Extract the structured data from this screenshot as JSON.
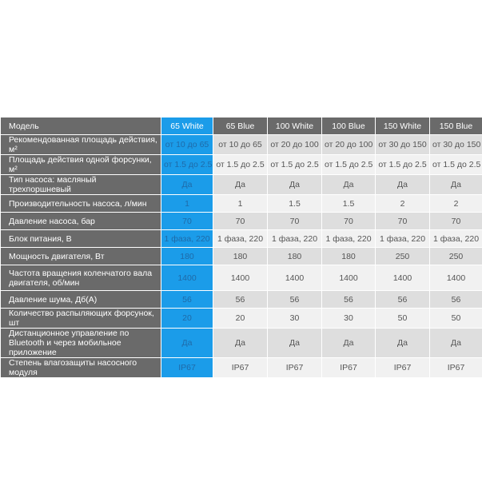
{
  "header": {
    "label": "Модель",
    "models": [
      "65 White",
      "65 Blue",
      "100 White",
      "100 Blue",
      "150 White",
      "150 Blue"
    ]
  },
  "rows": [
    {
      "label": "Рекомендованная площадь действия, м²",
      "values": [
        "от 10 до 65",
        "от 10 до 65",
        "от 20 до 100",
        "от 20 до 100",
        "от 30 до 150",
        "от 30 до 150"
      ]
    },
    {
      "label": "Площадь действия одной форсунки, м²",
      "values": [
        "от 1.5 до 2.5",
        "от 1.5 до 2.5",
        "от 1.5 до 2.5",
        "от 1.5 до 2.5",
        "от 1.5 до 2.5",
        "от 1.5 до 2.5"
      ]
    },
    {
      "label": "Тип насоса: масляный трехпоршневый",
      "values": [
        "Да",
        "Да",
        "Да",
        "Да",
        "Да",
        "Да"
      ]
    },
    {
      "label": "Производительность насоса, л/мин",
      "values": [
        "1",
        "1",
        "1.5",
        "1.5",
        "2",
        "2"
      ]
    },
    {
      "label": "Давление насоса, бар",
      "values": [
        "70",
        "70",
        "70",
        "70",
        "70",
        "70"
      ]
    },
    {
      "label": "Блок питания, В",
      "values": [
        "1 фаза, 220",
        "1 фаза, 220",
        "1 фаза, 220",
        "1 фаза, 220",
        "1 фаза, 220",
        "1 фаза, 220"
      ]
    },
    {
      "label": "Мощность двигателя, Вт",
      "values": [
        "180",
        "180",
        "180",
        "180",
        "250",
        "250"
      ]
    },
    {
      "label": "Частота вращения коленчатого вала двигателя, об/мин",
      "values": [
        "1400",
        "1400",
        "1400",
        "1400",
        "1400",
        "1400"
      ]
    },
    {
      "label": "Давление шума, Дб(А)",
      "values": [
        "56",
        "56",
        "56",
        "56",
        "56",
        "56"
      ]
    },
    {
      "label": "Количество распыляющих форсунок, шт",
      "values": [
        "20",
        "20",
        "30",
        "30",
        "50",
        "50"
      ]
    },
    {
      "label": "Дистанционное управление по Bluetooth и через мобильное приложение",
      "values": [
        "Да",
        "Да",
        "Да",
        "Да",
        "Да",
        "Да"
      ]
    },
    {
      "label": "Степень влагозащиты насосного модуля",
      "values": [
        "IP67",
        "IP67",
        "IP67",
        "IP67",
        "IP67",
        "IP67"
      ]
    }
  ],
  "colors": {
    "highlight": "#1b9ce9",
    "label_bg": "#6a6a6a"
  }
}
